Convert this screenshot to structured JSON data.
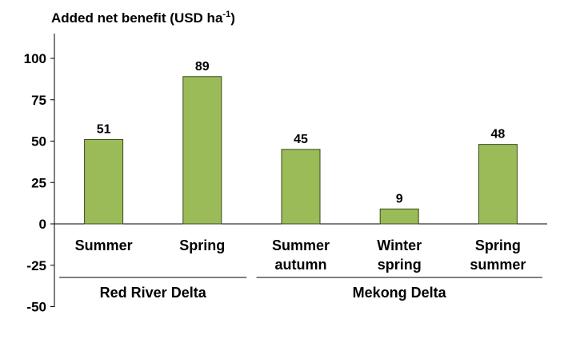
{
  "chart_data": {
    "type": "bar",
    "title_main": "Added net benefit (USD ha",
    "title_sup": "-1",
    "title_close": ")",
    "categories": [
      {
        "line1": "Summer",
        "line2": ""
      },
      {
        "line1": "Spring",
        "line2": ""
      },
      {
        "line1": "Summer",
        "line2": "autumn"
      },
      {
        "line1": "Winter",
        "line2": "spring"
      },
      {
        "line1": "Spring",
        "line2": "summer"
      }
    ],
    "values": [
      51,
      89,
      45,
      9,
      48
    ],
    "groups": [
      {
        "label": "Red River Delta",
        "start": 0,
        "end": 1
      },
      {
        "label": "Mekong Delta",
        "start": 2,
        "end": 4
      }
    ],
    "yticks": [
      "100",
      "75",
      "50",
      "25",
      "0",
      "-25",
      "-50"
    ],
    "ytick_values": [
      100,
      75,
      50,
      25,
      0,
      -25,
      -50
    ],
    "ylim": [
      -50,
      115
    ],
    "bar_color": "#9BBB59",
    "bar_edge": "#3a4a1a"
  }
}
